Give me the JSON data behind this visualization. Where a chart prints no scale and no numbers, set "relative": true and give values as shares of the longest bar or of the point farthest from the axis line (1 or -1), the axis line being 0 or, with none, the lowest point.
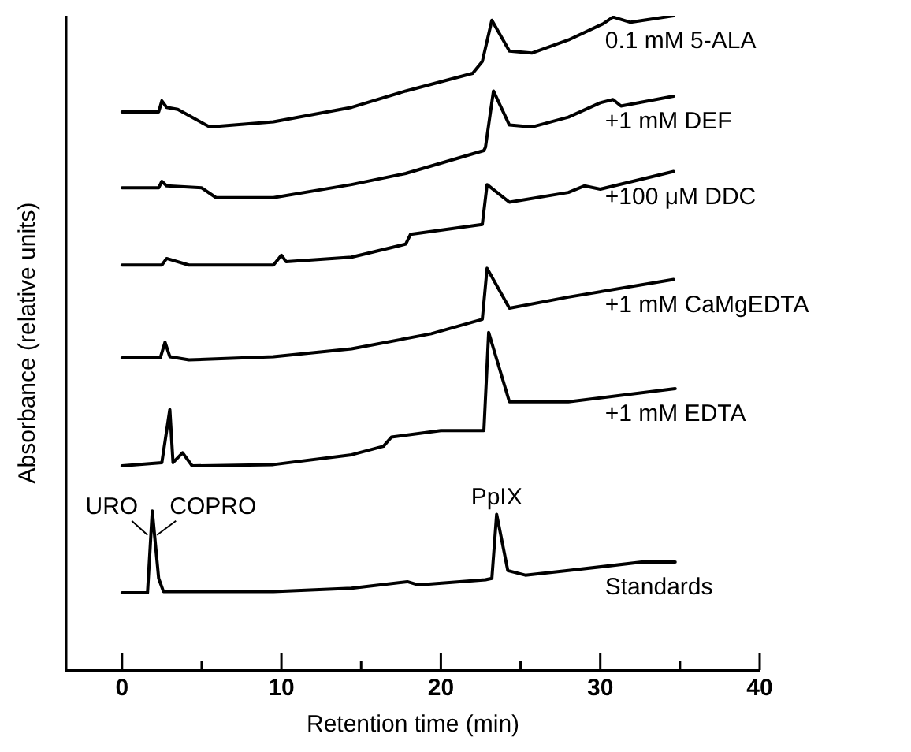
{
  "chart_data": {
    "type": "line",
    "relative": true,
    "xlabel": "Retention time (min)",
    "ylabel": "Absorbance (relative units)",
    "xlim": [
      -3.5,
      40
    ],
    "xticks": [
      0,
      {
        "value": 5,
        "label": null
      },
      10,
      {
        "value": 15,
        "label": null
      },
      20,
      {
        "value": 25,
        "label": null
      },
      30,
      {
        "value": 35,
        "label": null
      },
      40
    ],
    "legend": false,
    "grid": false,
    "marker": "none",
    "line_style": "solid",
    "series": [
      {
        "name": "0.1 mM 5-ALA",
        "color": "#000000",
        "x": [
          0,
          2.3,
          2.5,
          2.8,
          3.5,
          5.5,
          9.5,
          14.4,
          17.8,
          22.0,
          22.6,
          23.2,
          24.3,
          25.7,
          28,
          30.2,
          30.8,
          31.9,
          34.6
        ],
        "values": [
          0.853,
          0.853,
          0.87,
          0.86,
          0.857,
          0.83,
          0.838,
          0.86,
          0.885,
          0.912,
          0.93,
          0.993,
          0.946,
          0.943,
          0.963,
          0.988,
          0.998,
          0.99,
          1.0
        ]
      },
      {
        "name": "+1 mM DEF",
        "color": "#000000",
        "x": [
          0,
          2.3,
          2.5,
          2.8,
          5.0,
          5.9,
          9.5,
          14.4,
          17.8,
          22.7,
          22.8,
          23.3,
          24.3,
          25.7,
          28,
          30,
          30.8,
          31.3,
          34.6
        ],
        "values": [
          0.737,
          0.737,
          0.747,
          0.74,
          0.737,
          0.722,
          0.722,
          0.742,
          0.759,
          0.794,
          0.799,
          0.885,
          0.833,
          0.83,
          0.845,
          0.867,
          0.872,
          0.862,
          0.877
        ]
      },
      {
        "name": "+100 μM DDC",
        "color": "#000000",
        "x": [
          0,
          2.5,
          2.8,
          4.2,
          9.5,
          10.0,
          10.3,
          14.4,
          17.8,
          18.1,
          22.6,
          22.9,
          24.3,
          28,
          29,
          30,
          34.6
        ],
        "values": [
          0.619,
          0.619,
          0.629,
          0.619,
          0.619,
          0.634,
          0.624,
          0.631,
          0.651,
          0.666,
          0.681,
          0.742,
          0.715,
          0.73,
          0.74,
          0.735,
          0.762
        ]
      },
      {
        "name": "+1 mM CaMgEDTA",
        "color": "#000000",
        "x": [
          0,
          2.4,
          2.7,
          3.0,
          4.2,
          9.5,
          14.4,
          19.4,
          22.6,
          22.9,
          24.3,
          28,
          34.6
        ],
        "values": [
          0.477,
          0.477,
          0.501,
          0.479,
          0.474,
          0.479,
          0.491,
          0.514,
          0.536,
          0.614,
          0.553,
          0.57,
          0.597
        ]
      },
      {
        "name": "+1 mM EDTA",
        "color": "#000000",
        "x": [
          0,
          2.5,
          3.0,
          3.2,
          3.8,
          4.4,
          9.5,
          14.4,
          16.4,
          16.9,
          20,
          22.7,
          23.0,
          24.3,
          28,
          34.7
        ],
        "values": [
          0.312,
          0.317,
          0.398,
          0.317,
          0.332,
          0.312,
          0.314,
          0.329,
          0.342,
          0.356,
          0.366,
          0.366,
          0.516,
          0.41,
          0.41,
          0.43
        ]
      },
      {
        "name": "Standards",
        "color": "#000000",
        "x": [
          0,
          1.6,
          1.9,
          2.3,
          2.6,
          9.5,
          14.4,
          17.9,
          18.6,
          22.8,
          23.2,
          23.5,
          24.2,
          25.3,
          28,
          32.6,
          34.7
        ],
        "values": [
          0.118,
          0.118,
          0.243,
          0.14,
          0.12,
          0.12,
          0.125,
          0.135,
          0.13,
          0.138,
          0.14,
          0.238,
          0.152,
          0.145,
          0.152,
          0.165,
          0.165
        ]
      }
    ],
    "annotations": [
      {
        "text": "URO",
        "x": 1.8,
        "y": 0.24
      },
      {
        "text": "COPRO",
        "x": 2.0,
        "y": 0.24
      },
      {
        "text": "PpIX",
        "x": 23.5,
        "y": 0.238
      }
    ]
  }
}
